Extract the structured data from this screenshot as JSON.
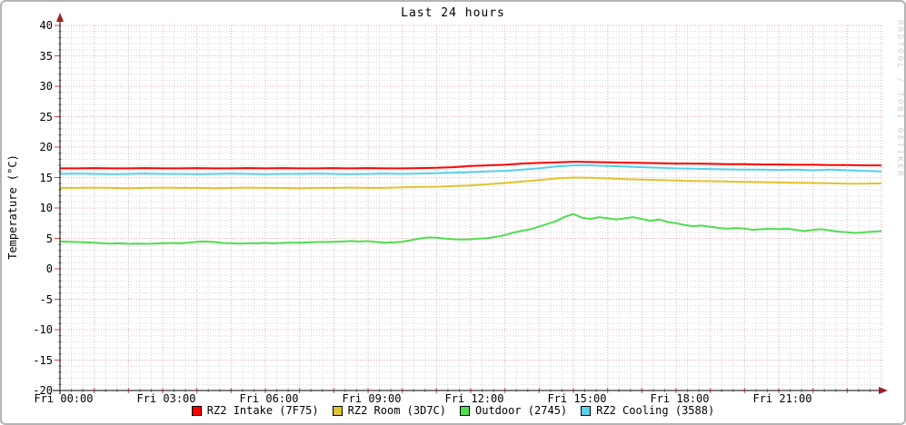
{
  "title": "Last 24 hours",
  "watermark": "RRDTOOL / TOBI OETIKER",
  "colors": {
    "background": "#ffffff",
    "frame_border": "#b4b4b4",
    "axis": "#000000",
    "arrow": "#a02020",
    "grid_major": "#f5a9a9",
    "grid_minor": "#d4d4d4",
    "tick_major": "#dd4444",
    "tick_minor": "#9a9a9a",
    "text": "#000000",
    "watermark_text": "#cfcfcf"
  },
  "chart_data": {
    "type": "line",
    "title": "Last 24 hours",
    "xlabel": "",
    "ylabel": "Temperature (°C)",
    "ylim": [
      -20,
      40
    ],
    "xlim_hours": [
      0,
      24
    ],
    "grid": "on",
    "legend_position": "bottom",
    "y_ticks": [
      -20,
      -15,
      -10,
      -5,
      0,
      5,
      10,
      15,
      20,
      25,
      30,
      35,
      40
    ],
    "y_minor_step": 1,
    "x_minor_step_hours": 0.3333333,
    "x_major_step_hours": 1,
    "x_tick_hours": [
      0,
      3,
      6,
      9,
      12,
      15,
      18,
      21
    ],
    "x_tick_labels": [
      "Fri 00:00",
      "Fri 03:00",
      "Fri 06:00",
      "Fri 09:00",
      "Fri 12:00",
      "Fri 15:00",
      "Fri 18:00",
      "Fri 21:00"
    ],
    "series": [
      {
        "name": "RZ2 Intake (7F75)",
        "color": "#ff0000",
        "x_start": 0,
        "x_step": 0.5,
        "values": [
          16.5,
          16.5,
          16.55,
          16.5,
          16.5,
          16.55,
          16.5,
          16.5,
          16.55,
          16.5,
          16.5,
          16.55,
          16.5,
          16.55,
          16.5,
          16.5,
          16.55,
          16.5,
          16.55,
          16.5,
          16.5,
          16.55,
          16.6,
          16.7,
          16.9,
          17.0,
          17.1,
          17.3,
          17.4,
          17.5,
          17.6,
          17.55,
          17.5,
          17.45,
          17.4,
          17.35,
          17.3,
          17.3,
          17.25,
          17.2,
          17.2,
          17.15,
          17.15,
          17.1,
          17.1,
          17.05,
          17.05,
          17.0,
          17.0
        ]
      },
      {
        "name": "RZ2 Room (3D7C)",
        "color": "#e2c22d",
        "x_start": 0,
        "x_step": 0.5,
        "values": [
          13.3,
          13.3,
          13.35,
          13.3,
          13.25,
          13.3,
          13.35,
          13.3,
          13.3,
          13.25,
          13.3,
          13.35,
          13.3,
          13.3,
          13.25,
          13.3,
          13.3,
          13.35,
          13.3,
          13.3,
          13.4,
          13.45,
          13.5,
          13.6,
          13.7,
          13.9,
          14.1,
          14.35,
          14.6,
          14.85,
          15.0,
          14.95,
          14.85,
          14.75,
          14.65,
          14.6,
          14.5,
          14.45,
          14.4,
          14.35,
          14.3,
          14.25,
          14.2,
          14.15,
          14.1,
          14.05,
          14.0,
          14.0,
          14.05
        ]
      },
      {
        "name": "Outdoor (2745)",
        "color": "#4fdd4f",
        "x_start": 0,
        "x_step": 0.25,
        "values": [
          4.5,
          4.45,
          4.4,
          4.35,
          4.3,
          4.2,
          4.15,
          4.2,
          4.1,
          4.15,
          4.1,
          4.15,
          4.2,
          4.25,
          4.2,
          4.3,
          4.45,
          4.5,
          4.4,
          4.25,
          4.2,
          4.15,
          4.2,
          4.2,
          4.25,
          4.2,
          4.25,
          4.3,
          4.3,
          4.35,
          4.4,
          4.4,
          4.45,
          4.5,
          4.55,
          4.5,
          4.55,
          4.4,
          4.3,
          4.35,
          4.45,
          4.7,
          4.95,
          5.15,
          5.1,
          4.95,
          4.85,
          4.8,
          4.85,
          4.95,
          5.05,
          5.25,
          5.55,
          5.95,
          6.25,
          6.5,
          6.95,
          7.4,
          7.85,
          8.55,
          9.0,
          8.4,
          8.2,
          8.5,
          8.3,
          8.1,
          8.3,
          8.5,
          8.2,
          7.9,
          8.1,
          7.7,
          7.5,
          7.2,
          7.0,
          7.1,
          6.9,
          6.7,
          6.6,
          6.7,
          6.6,
          6.4,
          6.5,
          6.6,
          6.5,
          6.6,
          6.4,
          6.2,
          6.4,
          6.5,
          6.3,
          6.1,
          6.0,
          5.9,
          6.0,
          6.1,
          6.2
        ]
      },
      {
        "name": "RZ2 Cooling (3588)",
        "color": "#55d0ee",
        "x_start": 0,
        "x_step": 0.5,
        "values": [
          15.6,
          15.65,
          15.6,
          15.55,
          15.6,
          15.65,
          15.6,
          15.6,
          15.55,
          15.6,
          15.65,
          15.6,
          15.55,
          15.6,
          15.6,
          15.65,
          15.6,
          15.55,
          15.6,
          15.65,
          15.6,
          15.65,
          15.7,
          15.8,
          15.9,
          16.0,
          16.1,
          16.3,
          16.5,
          16.8,
          17.0,
          17.0,
          16.9,
          16.8,
          16.7,
          16.6,
          16.5,
          16.45,
          16.4,
          16.35,
          16.3,
          16.3,
          16.25,
          16.3,
          16.2,
          16.3,
          16.2,
          16.1,
          16.0
        ]
      }
    ]
  },
  "legend": {
    "items": [
      {
        "label": "RZ2 Intake (7F75)",
        "color": "#ff0000"
      },
      {
        "label": "RZ2 Room (3D7C)",
        "color": "#e2c22d"
      },
      {
        "label": "Outdoor (2745)",
        "color": "#4fdd4f"
      },
      {
        "label": "RZ2 Cooling (3588)",
        "color": "#55d0ee"
      }
    ]
  }
}
